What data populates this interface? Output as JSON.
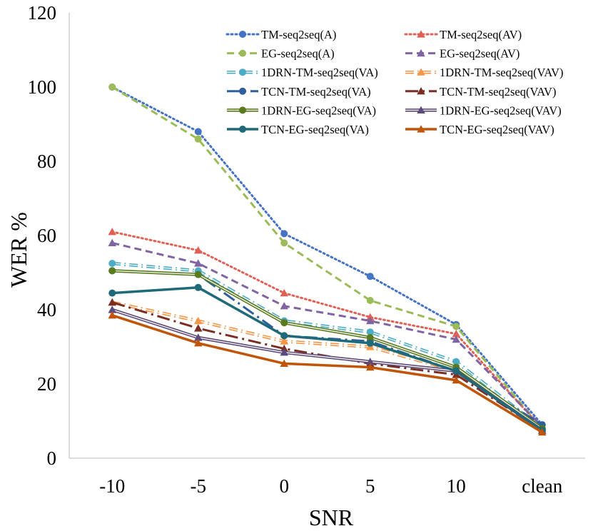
{
  "chart_data": {
    "type": "line",
    "title": "",
    "xlabel": "SNR",
    "ylabel": "WER %",
    "ylim": [
      0,
      120
    ],
    "yticks": [
      "0",
      "20",
      "40",
      "60",
      "80",
      "100",
      "120"
    ],
    "categories": [
      "-10",
      "-5",
      "0",
      "5",
      "10",
      "clean"
    ],
    "grid": false,
    "legend_position": "top-right",
    "series": [
      {
        "name": "TM-seq2seq(A)",
        "values": [
          100,
          88,
          60.5,
          49,
          36,
          9
        ],
        "color": "#4472C4",
        "dash": "dot",
        "marker": "circle",
        "width": 3
      },
      {
        "name": "TM-seq2seq(AV)",
        "values": [
          61,
          56,
          44.5,
          38,
          33.5,
          8
        ],
        "color": "#E06055",
        "dash": "dot",
        "marker": "triangle",
        "width": 3
      },
      {
        "name": "EG-seq2seq(A)",
        "values": [
          100,
          86,
          58,
          42.5,
          35.5,
          8
        ],
        "color": "#9BBB59",
        "dash": "dash",
        "marker": "circle",
        "width": 3
      },
      {
        "name": "EG-seq2seq(AV)",
        "values": [
          58,
          52.5,
          41,
          37,
          32,
          8.5
        ],
        "color": "#8064A2",
        "dash": "dash",
        "marker": "triangle",
        "width": 3
      },
      {
        "name": "1DRN-TM-seq2seq(VA)",
        "values": [
          52.5,
          50.5,
          37,
          34,
          26,
          8
        ],
        "color": "#4BACC6",
        "dash": "dashdot",
        "marker": "circle",
        "width": 3.5,
        "style": "double"
      },
      {
        "name": "1DRN-TM-seq2seq(VAV)",
        "values": [
          42,
          37,
          31.5,
          30,
          23.5,
          7.5
        ],
        "color": "#F79646",
        "dash": "dashdot",
        "marker": "triangle",
        "width": 3.5,
        "style": "double"
      },
      {
        "name": "TCN-TM-seq2seq(VA)",
        "values": [
          50.5,
          49.5,
          33,
          31.5,
          23.5,
          9
        ],
        "color": "#2E5F9E",
        "dash": "longdashdot",
        "marker": "circle",
        "width": 3
      },
      {
        "name": "TCN-TM-seq2seq(VAV)",
        "values": [
          42,
          35,
          29.5,
          25.5,
          22.5,
          7.5
        ],
        "color": "#7B2C23",
        "dash": "longdashdot",
        "marker": "triangle",
        "width": 3
      },
      {
        "name": "1DRN-EG-seq2seq(VA)",
        "values": [
          50.5,
          49.5,
          36.5,
          32.5,
          24.5,
          8
        ],
        "color": "#5A7A1E",
        "dash": "solid",
        "marker": "circle",
        "width": 3.5,
        "style": "double"
      },
      {
        "name": "1DRN-EG-seq2seq(VAV)",
        "values": [
          40,
          32.5,
          28.5,
          26,
          23.5,
          7.5
        ],
        "color": "#5C4A7A",
        "dash": "solid",
        "marker": "triangle",
        "width": 3.5,
        "style": "double"
      },
      {
        "name": "TCN-EG-seq2seq(VA)",
        "values": [
          44.5,
          46,
          33,
          31,
          23.5,
          7.5
        ],
        "color": "#1F6A78",
        "dash": "solid",
        "marker": "circle",
        "width": 3.5
      },
      {
        "name": "TCN-EG-seq2seq(VAV)",
        "values": [
          38.5,
          31,
          25.5,
          24.5,
          21,
          7
        ],
        "color": "#C0550A",
        "dash": "solid",
        "marker": "triangle",
        "width": 3.5
      }
    ]
  }
}
